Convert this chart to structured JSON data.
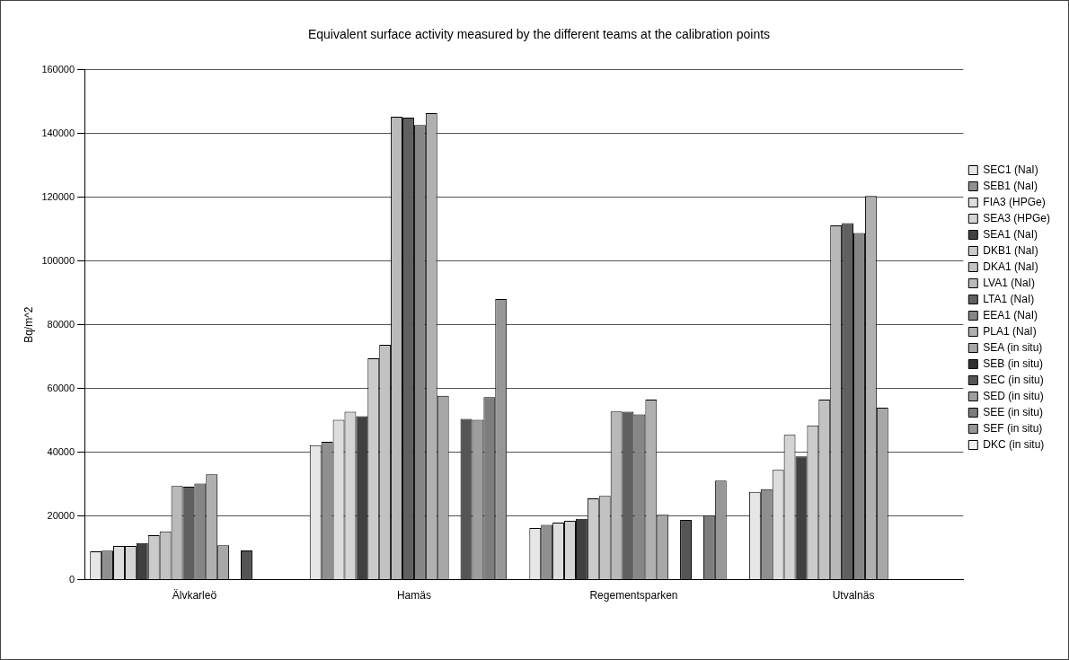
{
  "chart_data": {
    "type": "bar",
    "title": "Equivalent surface activity measured by the different teams at the calibration points",
    "ylabel": "Bq/m^2",
    "categories": [
      "Älvkarleö",
      "Hamäs",
      "Regementsparken",
      "Utvalnäs"
    ],
    "ylim": [
      0,
      160000
    ],
    "yticks": [
      0,
      20000,
      40000,
      60000,
      80000,
      100000,
      120000,
      140000,
      160000
    ],
    "grid": "y",
    "legend": "right",
    "series": [
      {
        "name": "SEC1 (NaI)",
        "color": "#e6e6e6",
        "values": [
          8900,
          42200,
          16200,
          27600
        ]
      },
      {
        "name": "SEB1 (NaI)",
        "color": "#8f8f8f",
        "values": [
          9100,
          43300,
          17200,
          28400
        ]
      },
      {
        "name": "FIA3 (HPGe)",
        "color": "#dddddd",
        "values": [
          10600,
          50200,
          17900,
          34500
        ]
      },
      {
        "name": "SEA3 (HPGe)",
        "color": "#d4d4d4",
        "values": [
          10600,
          52700,
          18500,
          45500
        ]
      },
      {
        "name": "SEA1 (NaI)",
        "color": "#404040",
        "values": [
          11500,
          51300,
          19100,
          38700
        ]
      },
      {
        "name": "DKB1 (NaI)",
        "color": "#cbcbcb",
        "values": [
          14000,
          69500,
          25500,
          48400
        ]
      },
      {
        "name": "DKA1 (NaI)",
        "color": "#c2c2c2",
        "values": [
          15200,
          73700,
          26300,
          56500
        ]
      },
      {
        "name": "LVA1 (NaI)",
        "color": "#b9b9b9",
        "values": [
          29400,
          145300,
          52800,
          111200
        ]
      },
      {
        "name": "LTA1 (NaI)",
        "color": "#606060",
        "values": [
          29200,
          145000,
          52700,
          111900
        ]
      },
      {
        "name": "EEA1 (NaI)",
        "color": "#868686",
        "values": [
          30200,
          142700,
          51900,
          108800
        ]
      },
      {
        "name": "PLA1 (NaI)",
        "color": "#b0b0b0",
        "values": [
          33100,
          146400,
          56500,
          120400
        ]
      },
      {
        "name": "SEA (in situ)",
        "color": "#a7a7a7",
        "values": [
          10800,
          57700,
          20400,
          54000
        ]
      },
      {
        "name": "SEB (in situ)",
        "color": "#303030",
        "values": [
          null,
          null,
          null,
          null
        ]
      },
      {
        "name": "SEC (in situ)",
        "color": "#555555",
        "values": [
          9200,
          50500,
          18800,
          null
        ]
      },
      {
        "name": "SED (in situ)",
        "color": "#9e9e9e",
        "values": [
          null,
          50200,
          null,
          null
        ]
      },
      {
        "name": "SEE (in situ)",
        "color": "#7d7d7d",
        "values": [
          null,
          57300,
          20100,
          null
        ]
      },
      {
        "name": "SEF (in situ)",
        "color": "#979797",
        "values": [
          null,
          88100,
          31100,
          null
        ]
      },
      {
        "name": "DKC (in situ)",
        "color": "#f0f0f0",
        "values": [
          null,
          null,
          null,
          null
        ]
      }
    ]
  }
}
